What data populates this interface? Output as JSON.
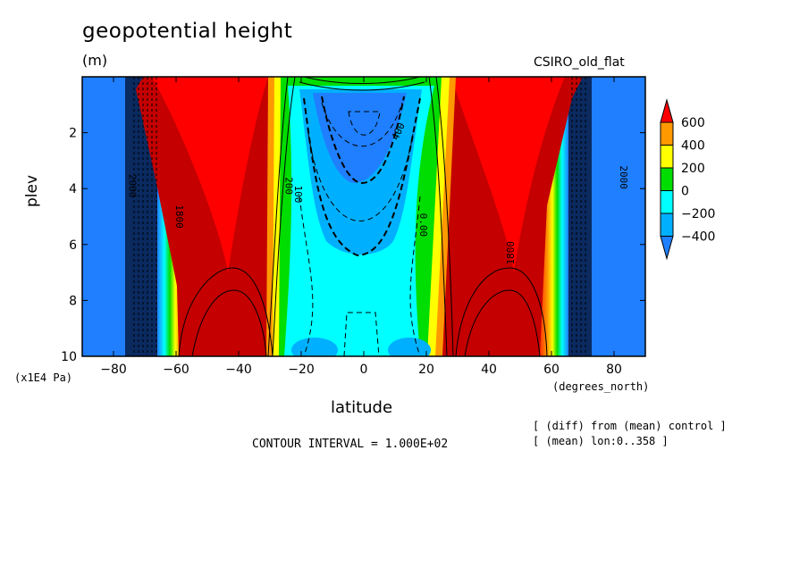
{
  "figure": {
    "title": "geopotential height",
    "units": "(m)",
    "model": "CSIRO_old_flat",
    "xlabel": "latitude",
    "ylabel": "plev",
    "y_units": "(x1E4 Pa)",
    "x_units": "(degrees_north)",
    "contour_interval": "CONTOUR INTERVAL = 1.000E+02",
    "note_line1": "[ (diff) from (mean) control ]",
    "note_line2": "[ (mean) lon:0..358 ]"
  },
  "chart_data": {
    "type": "heatmap",
    "title": "geopotential height",
    "xlabel": "latitude",
    "ylabel": "plev",
    "xlim": [
      -90,
      90
    ],
    "ylim": [
      10,
      0
    ],
    "x_ticks": [
      -80,
      -60,
      -40,
      -20,
      0,
      20,
      40,
      60,
      80
    ],
    "y_ticks": [
      2,
      4,
      6,
      8,
      10
    ],
    "colorbar": {
      "levels": [
        -400,
        -200,
        0,
        200,
        400,
        600
      ],
      "labels": [
        "600",
        "400",
        "200",
        "0",
        "−200",
        "−400"
      ],
      "colors": [
        "#1f7fff",
        "#00b0ff",
        "#00ffff",
        "#00dd00",
        "#ffff00",
        "#ff9900",
        "#ff0000"
      ]
    },
    "contour_labels": [
      "2000",
      "1800",
      "400",
      "200",
      "100",
      "0.00",
      "1800",
      "2000"
    ],
    "colors": {
      "far": "#1f7fff",
      "tropics_low": "#00ffff",
      "tropics_mid": "#00b0ff",
      "tropics_core": "#1f7fff",
      "max": "#ff0000"
    }
  }
}
